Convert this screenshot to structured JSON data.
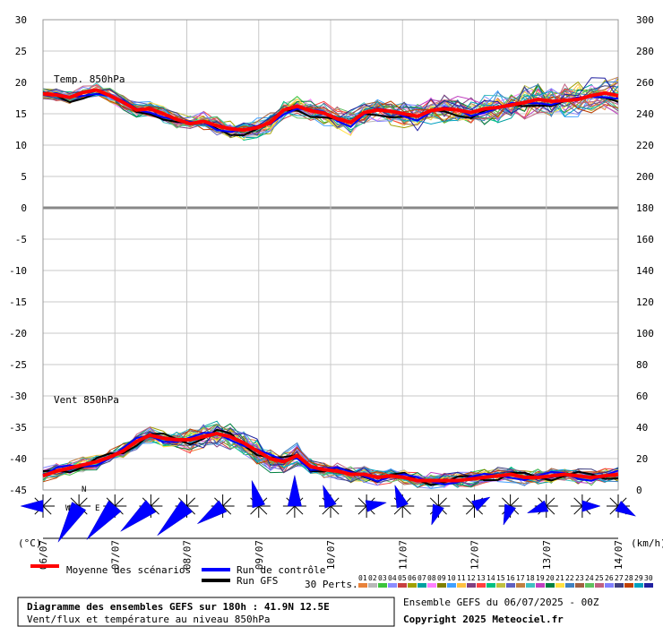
{
  "chart_data": {
    "type": "line",
    "title": "Diagramme des ensembles GEFS sur 180h : 41.9N 12.5E",
    "subtitle": "Vent/flux et température au niveau 850hPa",
    "run_info": "Ensemble GEFS du 06/07/2025 - 00Z",
    "copyright": "Copyright 2025 Meteociel.fr",
    "left_axis": {
      "unit": "(°C)",
      "ylim": [
        -45,
        30
      ],
      "ticks": [
        30,
        25,
        20,
        15,
        10,
        5,
        0,
        -5,
        -10,
        -15,
        -20,
        -25,
        -30,
        -35,
        -40,
        -45
      ]
    },
    "right_axis": {
      "unit": "(km/h)",
      "ylim": [
        0,
        300
      ],
      "ticks": [
        300,
        280,
        260,
        240,
        220,
        200,
        180,
        160,
        140,
        120,
        100,
        80,
        60,
        40,
        20,
        0
      ]
    },
    "x_labels": [
      "06/07",
      "07/07",
      "08/07",
      "09/07",
      "10/07",
      "11/07",
      "12/07",
      "13/07",
      "14/07"
    ],
    "panel_labels": {
      "temp": "Temp. 850hPa",
      "wind": "Vent 850hPa"
    },
    "temp_mean": [
      18.2,
      18.0,
      17.6,
      18.4,
      18.8,
      17.9,
      16.8,
      15.6,
      15.8,
      15.0,
      14.1,
      13.4,
      13.8,
      13.1,
      12.6,
      12.4,
      12.8,
      13.6,
      15.6,
      16.2,
      15.5,
      15.1,
      14.2,
      13.6,
      15.2,
      15.6,
      15.4,
      15.0,
      14.6,
      15.5,
      15.8,
      15.6,
      15.2,
      15.8,
      16.0,
      16.4,
      16.8,
      17.3,
      17.0,
      17.1,
      17.3,
      17.9,
      18.3,
      17.9
    ],
    "wind_mean": [
      9,
      12,
      14,
      16,
      18,
      21,
      25,
      31,
      35,
      33,
      32,
      32,
      34,
      36,
      34,
      30,
      25,
      20,
      18,
      22,
      15,
      13,
      12,
      10,
      10,
      8,
      9,
      8,
      6,
      6,
      6,
      6,
      7,
      8,
      9,
      10,
      8,
      8,
      9,
      10,
      9,
      8,
      9,
      10
    ],
    "series": [
      {
        "name": "Moyenne des scénarios",
        "color": "#ff0000"
      },
      {
        "name": "Run de contrôle",
        "color": "#0000ff"
      },
      {
        "name": "Run GFS",
        "color": "#000000"
      }
    ],
    "perturbations": {
      "label": "30 Perts.",
      "numbers": [
        "01",
        "02",
        "03",
        "04",
        "05",
        "06",
        "07",
        "08",
        "09",
        "10",
        "11",
        "12",
        "13",
        "14",
        "15",
        "16",
        "17",
        "18",
        "19",
        "20",
        "21",
        "22",
        "23",
        "24",
        "25",
        "26",
        "27",
        "28",
        "29",
        "30"
      ],
      "colors": [
        "#e8823a",
        "#b8b8b8",
        "#3cc43c",
        "#8c8cff",
        "#c84040",
        "#a0a000",
        "#00a0a0",
        "#ff80ff",
        "#808000",
        "#40a0ff",
        "#ffc040",
        "#804080",
        "#ff4040",
        "#00c080",
        "#c0c040",
        "#6060c0",
        "#c08040",
        "#40c0c0",
        "#c040c0",
        "#008040",
        "#ffe040",
        "#4080c0",
        "#a06040",
        "#60c060",
        "#c06080",
        "#8080ff",
        "#404080",
        "#c04000",
        "#00a0c0",
        "#2020a0"
      ]
    },
    "wind_directions": [
      {
        "from_deg": 270,
        "speed_kmh": 14
      },
      {
        "from_deg": 210,
        "speed_kmh": 32
      },
      {
        "from_deg": 220,
        "speed_kmh": 34
      },
      {
        "from_deg": 230,
        "speed_kmh": 30
      },
      {
        "from_deg": 225,
        "speed_kmh": 32
      },
      {
        "from_deg": 235,
        "speed_kmh": 22
      },
      {
        "from_deg": 345,
        "speed_kmh": 18
      },
      {
        "from_deg": 0,
        "speed_kmh": 22
      },
      {
        "from_deg": 340,
        "speed_kmh": 14
      },
      {
        "from_deg": 80,
        "speed_kmh": 12
      },
      {
        "from_deg": 340,
        "speed_kmh": 14
      },
      {
        "from_deg": 200,
        "speed_kmh": 12
      },
      {
        "from_deg": 60,
        "speed_kmh": 10
      },
      {
        "from_deg": 200,
        "speed_kmh": 12
      },
      {
        "from_deg": 250,
        "speed_kmh": 12
      },
      {
        "from_deg": 90,
        "speed_kmh": 10
      },
      {
        "from_deg": 120,
        "speed_kmh": 12
      }
    ],
    "compass_labels": {
      "n": "N",
      "w": "W",
      "e": "E"
    }
  }
}
